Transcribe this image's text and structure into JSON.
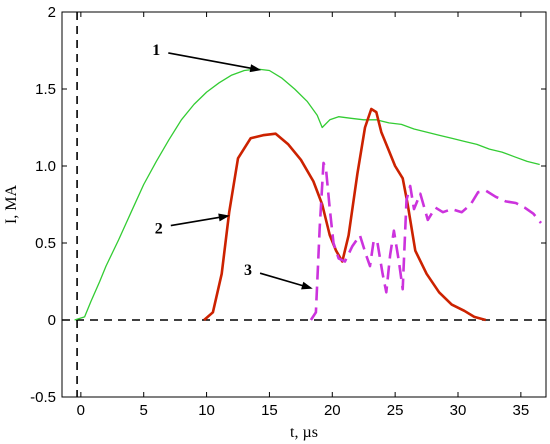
{
  "chart_data": {
    "type": "line",
    "xlabel": "t, µs",
    "ylabel": "I, MA",
    "xlim": [
      -1.5,
      37
    ],
    "ylim": [
      -0.5,
      2
    ],
    "xticks": [
      "0",
      "5",
      "10",
      "15",
      "20",
      "25",
      "30",
      "35"
    ],
    "xtick_values": [
      0,
      5,
      10,
      15,
      20,
      25,
      30,
      35
    ],
    "yticks": [
      "-0.5",
      "0",
      "0.5",
      "1.0",
      "1.5",
      "2"
    ],
    "ytick_values": [
      -0.5,
      0,
      0.5,
      1.0,
      1.5,
      2
    ],
    "reference_lines": [
      {
        "orientation": "horizontal",
        "value": 0,
        "style": "dashed"
      },
      {
        "orientation": "vertical",
        "value": -0.3,
        "style": "dashed"
      }
    ],
    "series": [
      {
        "id": "1",
        "color": "#33cc33",
        "style": "solid",
        "x": [
          -0.5,
          0.3,
          0.8,
          1.5,
          2,
          3,
          4,
          5,
          6,
          7,
          8,
          9,
          10,
          11,
          12,
          13,
          14,
          15,
          16,
          17,
          18,
          18.8,
          19.2,
          19.8,
          20.5,
          21.5,
          22.5,
          23.5,
          24.5,
          25.5,
          26.5,
          27.5,
          28.5,
          29.5,
          30.5,
          31.5,
          32.5,
          33.5,
          34.5,
          35.5,
          36.5
        ],
        "y": [
          0,
          0.02,
          0.12,
          0.25,
          0.35,
          0.52,
          0.7,
          0.88,
          1.03,
          1.17,
          1.3,
          1.4,
          1.48,
          1.54,
          1.59,
          1.62,
          1.63,
          1.62,
          1.57,
          1.5,
          1.42,
          1.33,
          1.25,
          1.3,
          1.32,
          1.31,
          1.3,
          1.3,
          1.28,
          1.27,
          1.24,
          1.22,
          1.2,
          1.18,
          1.16,
          1.14,
          1.11,
          1.09,
          1.06,
          1.03,
          1.01
        ]
      },
      {
        "id": "2",
        "color": "#cc2200",
        "style": "solid",
        "x": [
          9.8,
          10.5,
          11.2,
          11.8,
          12.5,
          13.5,
          14.5,
          15.5,
          16.5,
          17.5,
          18.5,
          19.2,
          19.8,
          20.3,
          20.8,
          21.3,
          22,
          22.6,
          23.1,
          23.5,
          23.9,
          24.4,
          25,
          25.6,
          26,
          26.6,
          27.5,
          28.5,
          29.5,
          30.5,
          31.3,
          32.2
        ],
        "y": [
          0,
          0.05,
          0.3,
          0.7,
          1.05,
          1.18,
          1.2,
          1.21,
          1.14,
          1.04,
          0.9,
          0.75,
          0.55,
          0.45,
          0.38,
          0.55,
          0.95,
          1.25,
          1.37,
          1.35,
          1.22,
          1.12,
          1.0,
          0.92,
          0.75,
          0.45,
          0.3,
          0.18,
          0.1,
          0.06,
          0.02,
          0
        ]
      },
      {
        "id": "3",
        "color": "#cc33dd",
        "style": "dashed",
        "x": [
          18.3,
          18.7,
          19.0,
          19.3,
          19.5,
          19.8,
          20.1,
          20.5,
          21.0,
          21.6,
          22.2,
          22.7,
          23.0,
          23.3,
          23.6,
          24.0,
          24.3,
          24.6,
          24.9,
          25.3,
          25.6,
          25.9,
          26.2,
          26.5,
          27.0,
          27.6,
          28.2,
          28.8,
          29.5,
          30.3,
          31.0,
          31.6,
          32.2,
          33.0,
          33.8,
          34.6,
          35.3,
          36.0,
          36.6
        ],
        "y": [
          0,
          0.05,
          0.6,
          1.02,
          0.98,
          0.72,
          0.5,
          0.4,
          0.38,
          0.48,
          0.55,
          0.42,
          0.35,
          0.52,
          0.5,
          0.3,
          0.18,
          0.42,
          0.58,
          0.38,
          0.2,
          0.78,
          0.87,
          0.72,
          0.82,
          0.65,
          0.73,
          0.7,
          0.72,
          0.7,
          0.75,
          0.83,
          0.84,
          0.8,
          0.77,
          0.76,
          0.73,
          0.69,
          0.63
        ]
      }
    ],
    "annotations": [
      {
        "text": "1",
        "target_series": "1",
        "arrow_x": 14.5,
        "arrow_y": 1.62,
        "label_x": 6.0,
        "label_y": 1.76
      },
      {
        "text": "2",
        "target_series": "2",
        "arrow_x": 12.0,
        "arrow_y": 0.68,
        "label_x": 6.2,
        "label_y": 0.6
      },
      {
        "text": "3",
        "target_series": "3",
        "arrow_x": 18.6,
        "arrow_y": 0.2,
        "label_x": 13.3,
        "label_y": 0.33
      }
    ]
  }
}
